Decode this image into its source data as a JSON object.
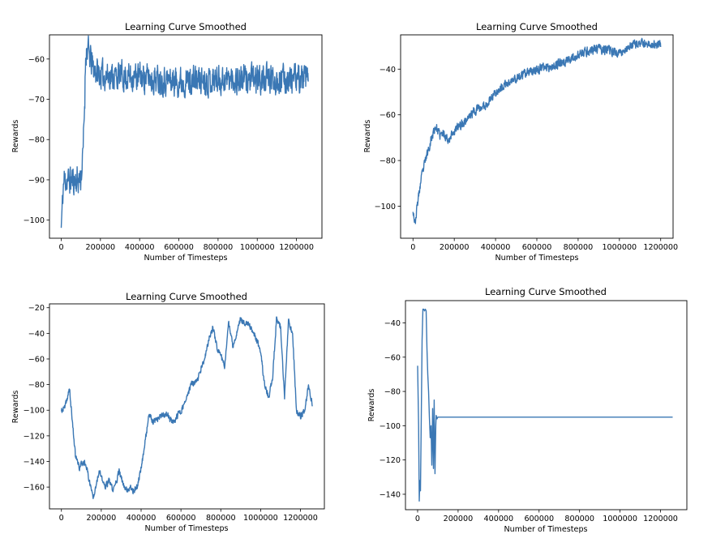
{
  "figure": {
    "line_color": "#3a77b4"
  },
  "chart_data": [
    {
      "type": "line",
      "title": "Learning Curve Smoothed",
      "xlabel": "Number of Timesteps",
      "ylabel": "Rewards",
      "xlim": [
        -60000,
        1330000
      ],
      "ylim": [
        -104.5,
        -54.0
      ],
      "xticks": [
        0,
        200000,
        400000,
        600000,
        800000,
        1000000,
        1200000
      ],
      "xtick_labels": [
        "0",
        "200000",
        "400000",
        "600000",
        "800000",
        "1000000",
        "1200000"
      ],
      "yticks": [
        -100,
        -90,
        -80,
        -70,
        -60
      ],
      "ytick_labels": [
        "−100",
        "−90",
        "−80",
        "−70",
        "−60"
      ],
      "series": [
        {
          "name": "Rewards",
          "noise": 3.2,
          "seed": 11,
          "x": [
            0,
            5000,
            10000,
            15000,
            90000,
            100000,
            110000,
            120000,
            125000,
            135000,
            160000,
            200000,
            400000,
            600000,
            800000,
            1000000,
            1200000,
            1260000
          ],
          "y": [
            -102,
            -97,
            -92,
            -90,
            -90,
            -89.5,
            -85,
            -70,
            -58,
            -57.5,
            -62,
            -64,
            -64.5,
            -65.5,
            -65,
            -65,
            -65,
            -65
          ]
        }
      ]
    },
    {
      "type": "line",
      "title": "Learning Curve Smoothed",
      "xlabel": "Number of Timesteps",
      "ylabel": "Rewards",
      "xlim": [
        -60000,
        1260000
      ],
      "ylim": [
        -114.0,
        -25.0
      ],
      "xticks": [
        0,
        200000,
        400000,
        600000,
        800000,
        1000000,
        1200000
      ],
      "xtick_labels": [
        "0",
        "200000",
        "400000",
        "600000",
        "800000",
        "1000000",
        "1200000"
      ],
      "yticks": [
        -100,
        -80,
        -60,
        -40
      ],
      "ytick_labels": [
        "−100",
        "−80",
        "−60",
        "−40"
      ],
      "series": [
        {
          "name": "Rewards",
          "noise": 1.8,
          "seed": 23,
          "x": [
            0,
            10000,
            20000,
            40000,
            60000,
            90000,
            110000,
            130000,
            150000,
            170000,
            200000,
            250000,
            300000,
            350000,
            400000,
            450000,
            500000,
            550000,
            600000,
            650000,
            700000,
            750000,
            800000,
            850000,
            900000,
            950000,
            1000000,
            1050000,
            1100000,
            1150000,
            1200000
          ],
          "y": [
            -101,
            -108,
            -100,
            -88,
            -80,
            -70,
            -65,
            -69,
            -68,
            -71,
            -67,
            -63,
            -58,
            -56,
            -50,
            -47,
            -44,
            -42,
            -40,
            -39,
            -38,
            -36,
            -34,
            -32,
            -31,
            -32,
            -33,
            -30,
            -29,
            -29,
            -29
          ]
        }
      ]
    },
    {
      "type": "line",
      "title": "Learning Curve Smoothed",
      "xlabel": "Number of Timesteps",
      "ylabel": "Rewards",
      "xlim": [
        -60000,
        1320000
      ],
      "ylim": [
        -177.0,
        -17.0
      ],
      "xticks": [
        0,
        200000,
        400000,
        600000,
        800000,
        1000000,
        1200000
      ],
      "xtick_labels": [
        "0",
        "200000",
        "400000",
        "600000",
        "800000",
        "1000000",
        "1200000"
      ],
      "yticks": [
        -160,
        -140,
        -120,
        -100,
        -80,
        -60,
        -40,
        -20
      ],
      "ytick_labels": [
        "−160",
        "−140",
        "−120",
        "−100",
        "−80",
        "−60",
        "−40",
        "−20"
      ],
      "series": [
        {
          "name": "Rewards",
          "noise": 2.2,
          "seed": 37,
          "x": [
            0,
            20000,
            40000,
            50000,
            70000,
            90000,
            100000,
            120000,
            140000,
            160000,
            170000,
            190000,
            200000,
            220000,
            240000,
            260000,
            290000,
            310000,
            330000,
            350000,
            360000,
            380000,
            400000,
            420000,
            440000,
            460000,
            500000,
            530000,
            560000,
            600000,
            620000,
            650000,
            680000,
            700000,
            720000,
            740000,
            760000,
            780000,
            800000,
            820000,
            840000,
            860000,
            880000,
            900000,
            920000,
            950000,
            980000,
            1000000,
            1020000,
            1040000,
            1060000,
            1080000,
            1100000,
            1120000,
            1140000,
            1160000,
            1180000,
            1200000,
            1220000,
            1240000,
            1260000
          ],
          "y": [
            -101,
            -97,
            -83,
            -100,
            -135,
            -145,
            -142,
            -140,
            -155,
            -168,
            -160,
            -147,
            -153,
            -160,
            -155,
            -163,
            -148,
            -158,
            -162,
            -160,
            -163,
            -160,
            -145,
            -125,
            -103,
            -110,
            -105,
            -103,
            -110,
            -100,
            -95,
            -80,
            -78,
            -68,
            -60,
            -45,
            -35,
            -50,
            -58,
            -65,
            -32,
            -50,
            -40,
            -28,
            -32,
            -35,
            -45,
            -55,
            -80,
            -90,
            -75,
            -28,
            -35,
            -90,
            -30,
            -40,
            -100,
            -105,
            -100,
            -82,
            -95
          ]
        }
      ]
    },
    {
      "type": "line",
      "title": "Learning Curve Smoothed",
      "xlabel": "Number of Timesteps",
      "ylabel": "Rewards",
      "xlim": [
        -60000,
        1330000
      ],
      "ylim": [
        -149.0,
        -27.0
      ],
      "xticks": [
        0,
        200000,
        400000,
        600000,
        800000,
        1000000,
        1200000
      ],
      "xtick_labels": [
        "0",
        "200000",
        "400000",
        "600000",
        "800000",
        "1000000",
        "1200000"
      ],
      "yticks": [
        -140,
        -120,
        -100,
        -80,
        -60,
        -40
      ],
      "ytick_labels": [
        "−140",
        "−120",
        "−100",
        "−80",
        "−60",
        "−40"
      ],
      "series": [
        {
          "name": "Rewards",
          "noise": 0,
          "seed": 5,
          "x": [
            0,
            5000,
            8000,
            11000,
            14000,
            18000,
            22000,
            26000,
            30000,
            34000,
            38000,
            42000,
            46000,
            50000,
            54000,
            58000,
            62000,
            66000,
            70000,
            74000,
            78000,
            82000,
            86000,
            90000,
            92000,
            96000,
            100000,
            110000,
            200000,
            600000,
            1000000,
            1260000
          ],
          "y": [
            -65,
            -100,
            -144,
            -132,
            -138,
            -95,
            -50,
            -32,
            -32,
            -33,
            -32,
            -33,
            -55,
            -70,
            -80,
            -95,
            -107,
            -100,
            -123,
            -90,
            -125,
            -85,
            -128,
            -100,
            -94,
            -96,
            -95,
            -95,
            -95,
            -95,
            -95,
            -95
          ]
        }
      ]
    }
  ]
}
